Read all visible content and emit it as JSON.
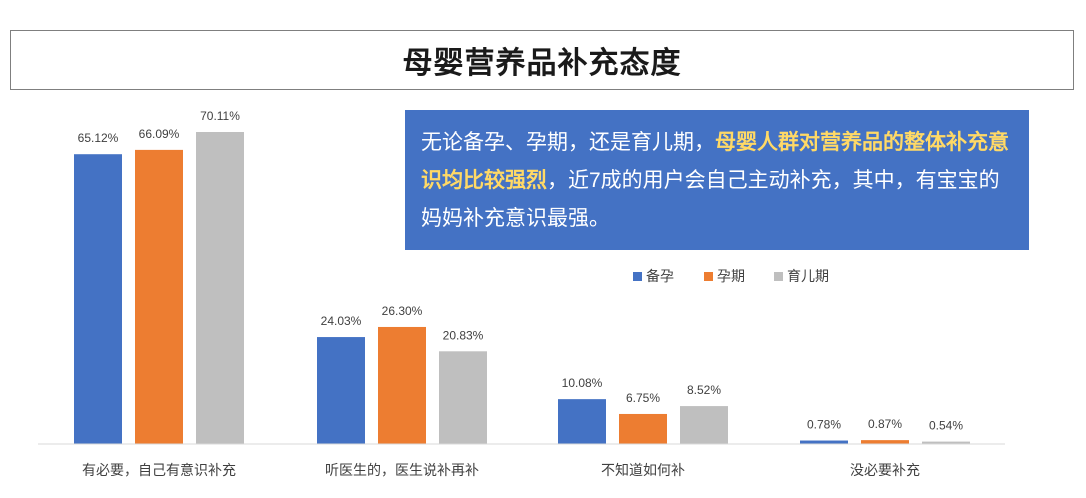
{
  "chart_data": {
    "type": "bar",
    "title": "母婴营养品补充态度",
    "categories": [
      "有必要，自己有意识补充",
      "听医生的，医生说补再补",
      "不知道如何补",
      "没必要补充"
    ],
    "series": [
      {
        "name": "备孕",
        "color": "#4472c4",
        "values": [
          65.12,
          24.03,
          10.08,
          0.78
        ],
        "labels": [
          "65.12%",
          "24.03%",
          "10.08%",
          "0.78%"
        ]
      },
      {
        "name": "孕期",
        "color": "#ed7d31",
        "values": [
          66.09,
          26.3,
          6.75,
          0.87
        ],
        "labels": [
          "66.09%",
          "26.30%",
          "6.75%",
          "0.87%"
        ]
      },
      {
        "name": "育儿期",
        "color": "#bfbfbf",
        "values": [
          70.11,
          20.83,
          8.52,
          0.54
        ],
        "labels": [
          "70.11%",
          "20.83%",
          "8.52%",
          "0.54%"
        ]
      }
    ],
    "legend_position": "top-right",
    "grid": false,
    "ylim": [
      0,
      70.11
    ]
  },
  "callout": {
    "text_before": "无论备孕、孕期，还是育儿期，",
    "highlight": "母婴人群对营养品的整体补充意识均比较强烈",
    "text_after": "，近7成的用户会自己主动补充，其中，有宝宝的妈妈补充意识最强。",
    "bg_color": "#4472c4",
    "highlight_color": "#ffd966"
  }
}
